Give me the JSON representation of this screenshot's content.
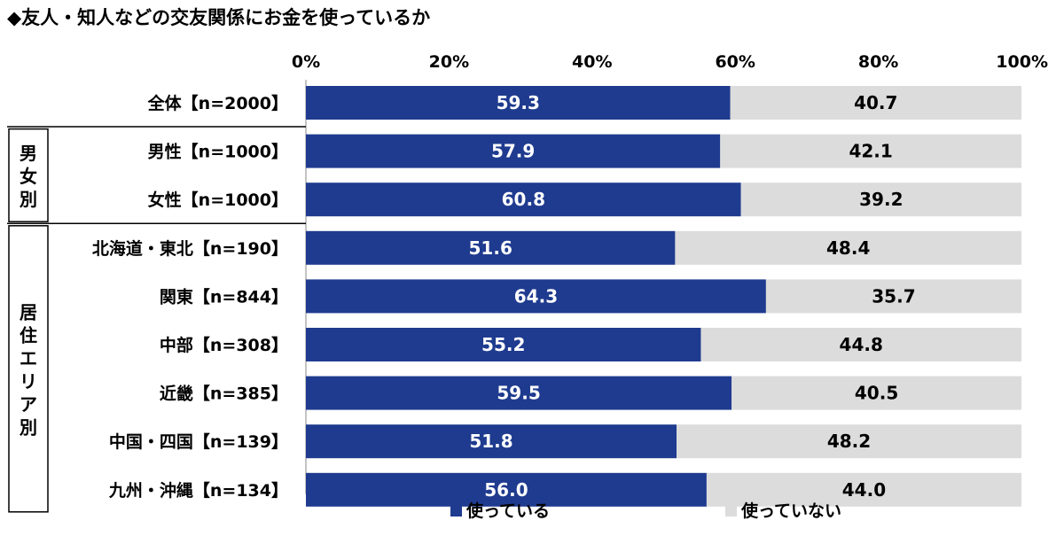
{
  "title": "◆友人・知人などの交友関係にお金を使っているか",
  "chart_data": {
    "type": "bar",
    "orientation": "horizontal",
    "stacked": true,
    "percent": true,
    "title": "◆友人・知人などの交友関係にお金を使っているか",
    "xlim": [
      0,
      100
    ],
    "x_ticks": [
      "0%",
      "20%",
      "40%",
      "60%",
      "80%",
      "100%"
    ],
    "x_tick_values": [
      0,
      20,
      40,
      60,
      80,
      100
    ],
    "categories": [
      "全体【n=2000】",
      "男性【n=1000】",
      "女性【n=1000】",
      "北海道・東北【n=190】",
      "関東【n=844】",
      "中部【n=308】",
      "近畿【n=385】",
      "中国・四国【n=139】",
      "九州・沖縄【n=134】"
    ],
    "series": [
      {
        "name": "使っている",
        "color": "#1f3b8f",
        "values": [
          59.3,
          57.9,
          60.8,
          51.6,
          64.3,
          55.2,
          59.5,
          51.8,
          56.0
        ],
        "labels": [
          "59.3",
          "57.9",
          "60.8",
          "51.6",
          "64.3",
          "55.2",
          "59.5",
          "51.8",
          "56.0"
        ]
      },
      {
        "name": "使っていない",
        "color": "#dcdcdc",
        "values": [
          40.7,
          42.1,
          39.2,
          48.4,
          35.7,
          44.8,
          40.5,
          48.2,
          44.0
        ],
        "labels": [
          "40.7",
          "42.1",
          "39.2",
          "48.4",
          "35.7",
          "44.8",
          "40.5",
          "48.2",
          "44.0"
        ]
      }
    ],
    "groups": [
      {
        "label": "男女別",
        "start": 1,
        "end": 2
      },
      {
        "label": "居住エリア別",
        "start": 3,
        "end": 8
      }
    ],
    "legend_position": "bottom",
    "grid": false
  }
}
